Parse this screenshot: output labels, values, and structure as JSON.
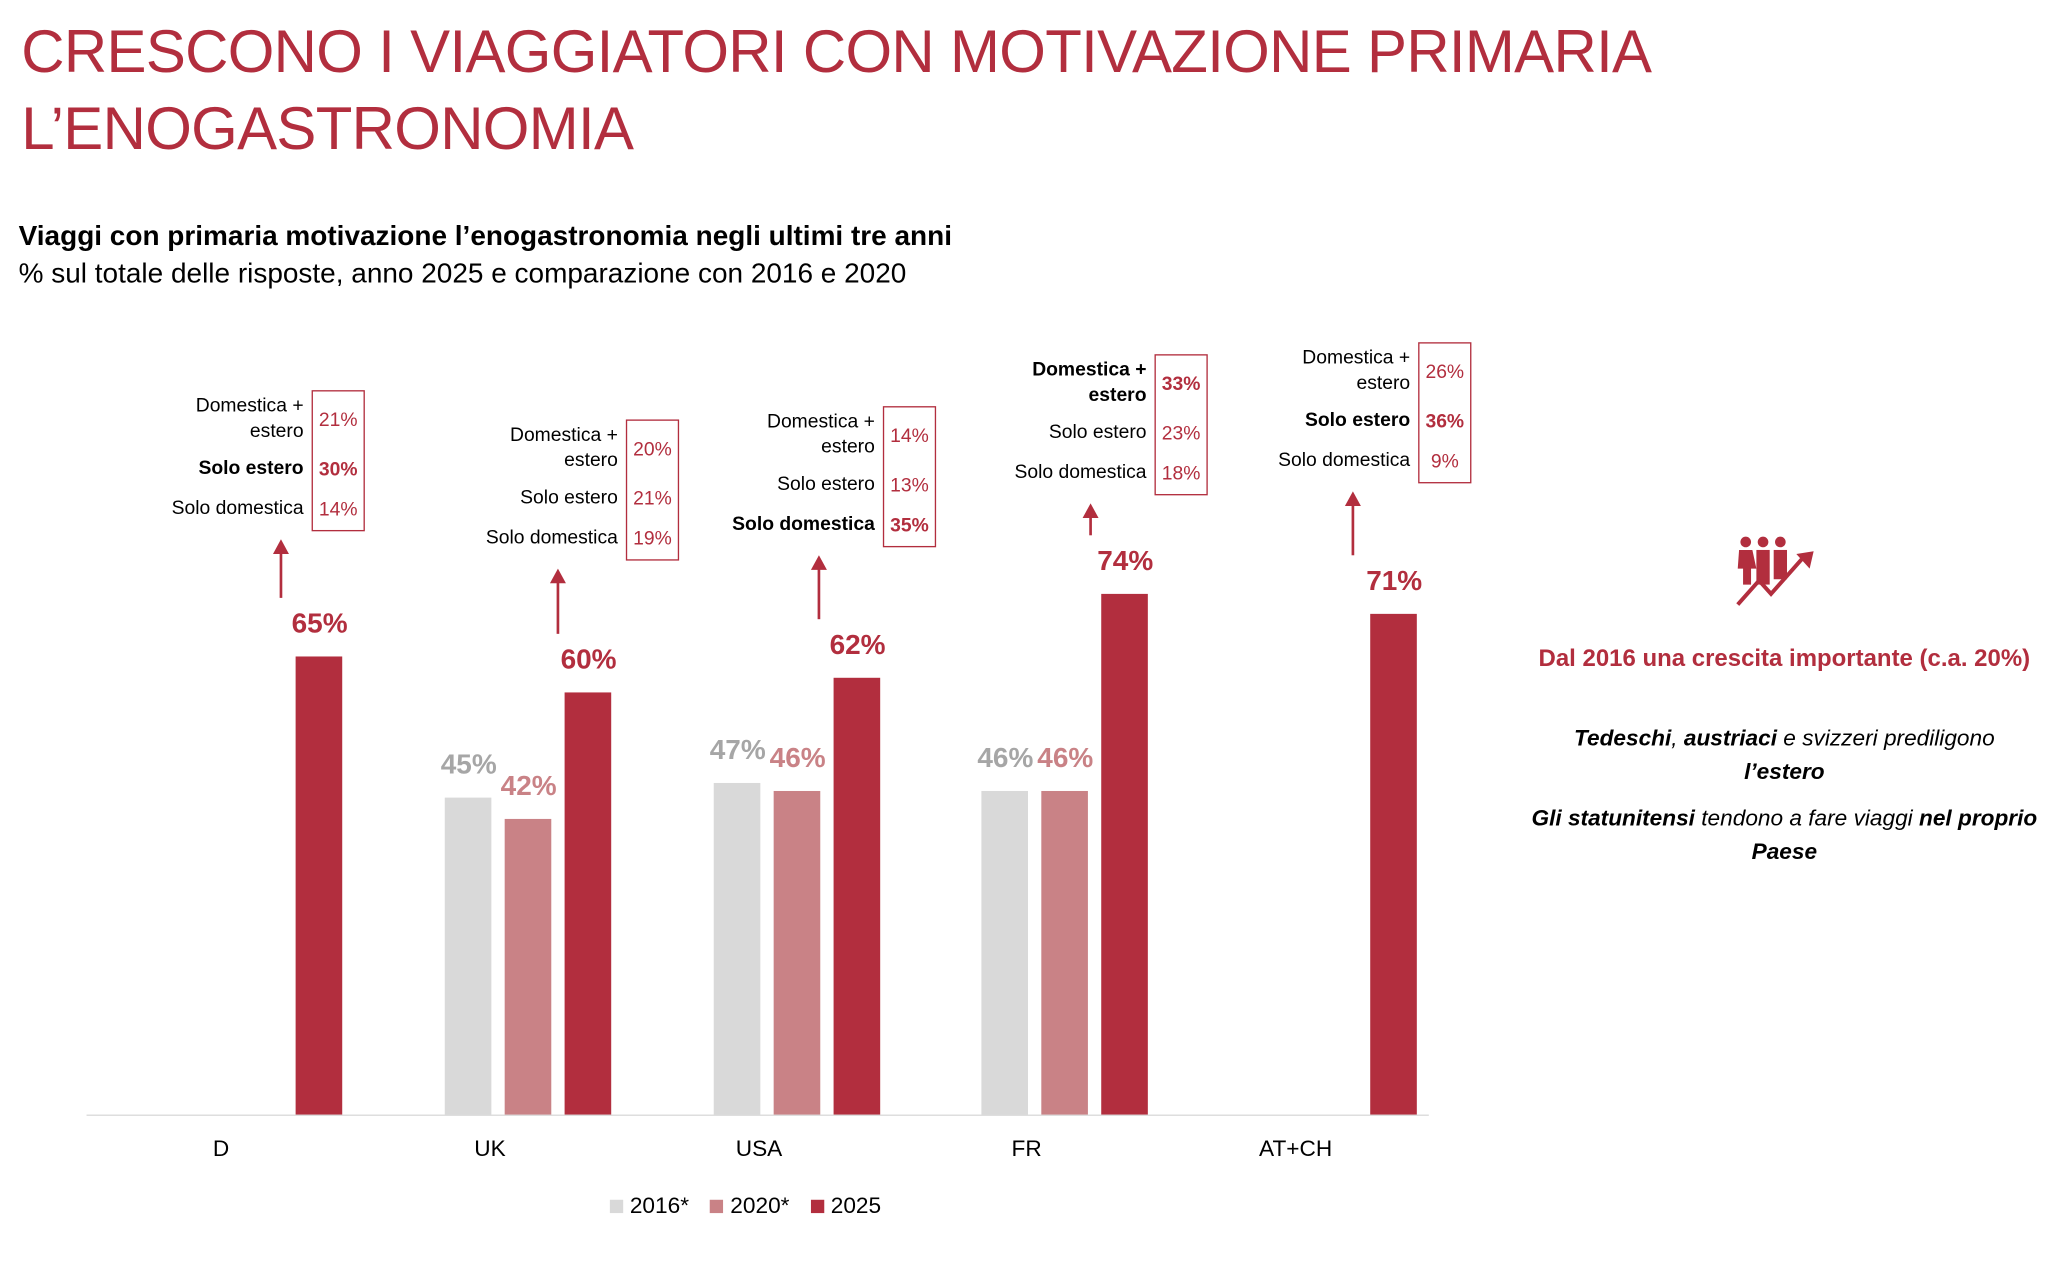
{
  "title": [
    "CRESCONO I VIAGGIATORI CON MOTIVAZIONE PRIMARIA",
    "L’ENOGASTRONOMIA"
  ],
  "subtitle_bold": "Viaggi con primaria motivazione l’enogastronomia negli ultimi tre anni",
  "subtitle": "% sul totale delle risposte, anno 2025 e comparazione con 2016 e 2020",
  "colors": {
    "accent": "#B22E3E",
    "s2016": "#D9D9D9",
    "s2020": "#C98286",
    "label2016": "#A6A6A6"
  },
  "chart_data": {
    "type": "bar",
    "categories": [
      "D",
      "UK",
      "USA",
      "FR",
      "AT+CH"
    ],
    "series": [
      {
        "name": "2016*",
        "values": [
          null,
          45,
          47,
          46,
          null
        ],
        "labels": [
          "",
          "45%",
          "47%",
          "46%",
          ""
        ]
      },
      {
        "name": "2020*",
        "values": [
          null,
          42,
          46,
          46,
          null
        ],
        "labels": [
          "",
          "42%",
          "46%",
          "46%",
          ""
        ]
      },
      {
        "name": "2025",
        "values": [
          65,
          60,
          62,
          74,
          71
        ],
        "labels": [
          "65%",
          "60%",
          "62%",
          "74%",
          "71%"
        ]
      }
    ],
    "ylim": [
      0,
      80
    ],
    "legend": "bottom",
    "breakdown": [
      {
        "rows": [
          {
            "label": "Domestica + estero",
            "value": "21%",
            "bold": false
          },
          {
            "label": "Solo estero",
            "value": "30%",
            "bold": true
          },
          {
            "label": "Solo domestica",
            "value": "14%",
            "bold": false
          }
        ]
      },
      {
        "rows": [
          {
            "label": "Domestica + estero",
            "value": "20%",
            "bold": false
          },
          {
            "label": "Solo estero",
            "value": "21%",
            "bold": false
          },
          {
            "label": "Solo domestica",
            "value": "19%",
            "bold": false
          }
        ]
      },
      {
        "rows": [
          {
            "label": "Domestica + estero",
            "value": "14%",
            "bold": false
          },
          {
            "label": "Solo estero",
            "value": "13%",
            "bold": false
          },
          {
            "label": "Solo domestica",
            "value": "35%",
            "bold": true
          }
        ]
      },
      {
        "rows": [
          {
            "label": "Domestica + estero",
            "value": "33%",
            "bold": true
          },
          {
            "label": "Solo estero",
            "value": "23%",
            "bold": false
          },
          {
            "label": "Solo domestica",
            "value": "18%",
            "bold": false
          }
        ]
      },
      {
        "rows": [
          {
            "label": "Domestica + estero",
            "value": "26%",
            "bold": false
          },
          {
            "label": "Solo estero",
            "value": "36%",
            "bold": true
          },
          {
            "label": "Solo domestica",
            "value": "9%",
            "bold": false
          }
        ]
      }
    ]
  },
  "panel": {
    "icon": "people-growth-icon",
    "headline": "Dal 2016 una crescita importante (c.a. 20%)",
    "p1": {
      "b1": "Tedeschi",
      "sep": ", ",
      "b2": "austriaci",
      "t1": " e svizzeri prediligono ",
      "b3": "l’estero"
    },
    "p2": {
      "b1": "Gli statunitensi",
      "t1": " tendono a fare viaggi ",
      "b2": "nel proprio Paese"
    }
  }
}
